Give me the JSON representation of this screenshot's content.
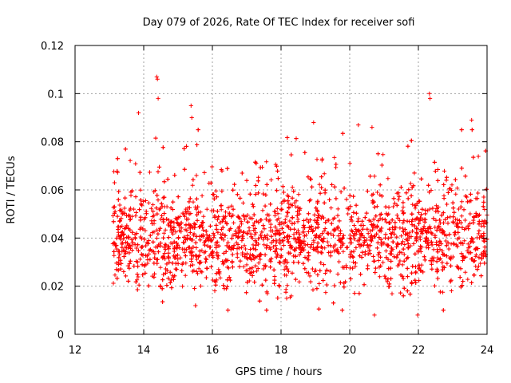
{
  "chart_data": {
    "type": "scatter",
    "title": "Day 079 of 2026, Rate Of TEC Index for receiver sofi",
    "xlabel": "GPS time / hours",
    "ylabel": "ROTI / TECUs",
    "xlim": [
      12,
      24
    ],
    "ylim": [
      0,
      0.12
    ],
    "x_ticks": [
      12,
      14,
      16,
      18,
      20,
      22,
      24
    ],
    "y_ticks": [
      0,
      0.02,
      0.04,
      0.06,
      0.08,
      0.1,
      0.12
    ],
    "x_tick_labels": [
      "12",
      "14",
      "16",
      "18",
      "20",
      "22",
      "24"
    ],
    "y_tick_labels": [
      "0",
      "0.02",
      "0.04",
      "0.06",
      "0.08",
      "0.1",
      "0.12"
    ],
    "grid": true,
    "marker": "+",
    "series_color": "#ff0000",
    "data_range": {
      "x_start": 13.1,
      "x_end": 24.0,
      "typical_y": [
        0.015,
        0.07
      ],
      "median_y": 0.04
    },
    "notable_points": [
      {
        "x": 14.38,
        "y": 0.107
      },
      {
        "x": 14.4,
        "y": 0.106
      },
      {
        "x": 14.42,
        "y": 0.098
      },
      {
        "x": 15.38,
        "y": 0.095
      },
      {
        "x": 15.4,
        "y": 0.09
      },
      {
        "x": 22.32,
        "y": 0.1
      },
      {
        "x": 22.34,
        "y": 0.098
      },
      {
        "x": 23.55,
        "y": 0.089
      },
      {
        "x": 21.98,
        "y": 0.008
      },
      {
        "x": 20.72,
        "y": 0.008
      },
      {
        "x": 13.85,
        "y": 0.092
      },
      {
        "x": 20.25,
        "y": 0.087
      },
      {
        "x": 20.65,
        "y": 0.086
      },
      {
        "x": 18.95,
        "y": 0.088
      }
    ]
  }
}
